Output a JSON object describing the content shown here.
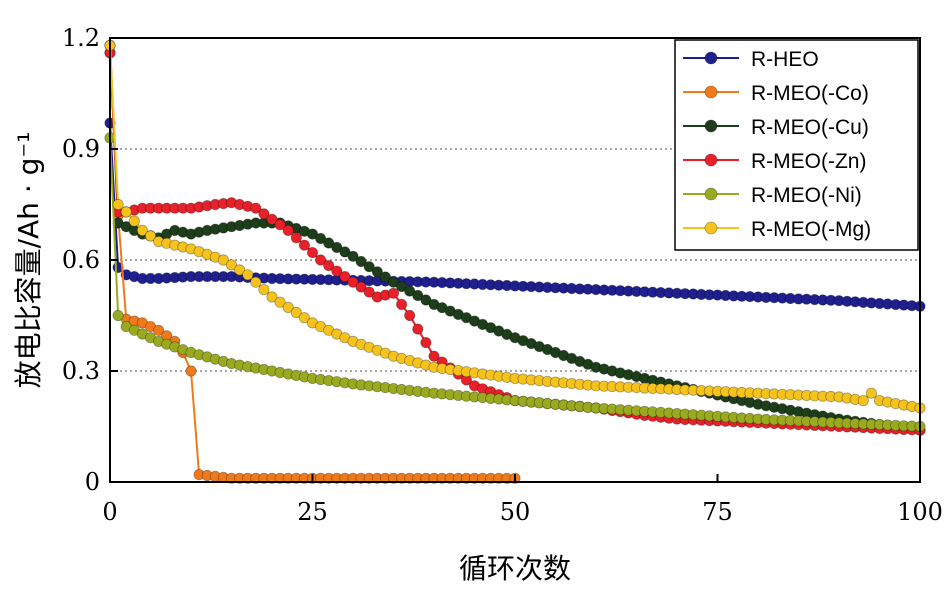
{
  "chart_data": {
    "type": "line",
    "xlabel": "循环次数",
    "ylabel": "放电比容量/Ah · g⁻¹",
    "xlim": [
      0,
      100
    ],
    "ylim": [
      0,
      1.2
    ],
    "xticks": [
      "0",
      "25",
      "50",
      "75",
      "100"
    ],
    "yticks": [
      "0",
      "0.3",
      "0.6",
      "0.9",
      "1.2"
    ],
    "grid": "horizontal dotted",
    "legend_position": "top-right",
    "series": [
      {
        "name": "R-HEO",
        "color": "#1f1f8f",
        "x": [
          0,
          1,
          2,
          4,
          6,
          10,
          15,
          20,
          30,
          40,
          50,
          60,
          70,
          80,
          90,
          100
        ],
        "values": [
          0.97,
          0.58,
          0.56,
          0.55,
          0.55,
          0.555,
          0.555,
          0.55,
          0.545,
          0.54,
          0.53,
          0.52,
          0.51,
          0.5,
          0.49,
          0.475
        ]
      },
      {
        "name": "R-MEO(-Co)",
        "color": "#f07a1a",
        "x": [
          0,
          1,
          2,
          4,
          6,
          8,
          9,
          10,
          11,
          15,
          20,
          30,
          40,
          50
        ],
        "values": [
          1.16,
          0.72,
          0.44,
          0.43,
          0.41,
          0.38,
          0.35,
          0.3,
          0.02,
          0.01,
          0.01,
          0.01,
          0.01,
          0.01
        ]
      },
      {
        "name": "R-MEO(-Cu)",
        "color": "#1e3d1a",
        "x": [
          0,
          1,
          2,
          4,
          6,
          8,
          10,
          12,
          15,
          18,
          21,
          25,
          30,
          35,
          40,
          50,
          60,
          70,
          80,
          90,
          100
        ],
        "values": [
          1.18,
          0.7,
          0.69,
          0.67,
          0.66,
          0.68,
          0.67,
          0.68,
          0.69,
          0.7,
          0.7,
          0.67,
          0.61,
          0.54,
          0.48,
          0.39,
          0.31,
          0.26,
          0.21,
          0.17,
          0.14
        ]
      },
      {
        "name": "R-MEO(-Zn)",
        "color": "#e8202a",
        "x": [
          0,
          1,
          2,
          4,
          6,
          10,
          13,
          15,
          18,
          22,
          26,
          30,
          33,
          35,
          37,
          40,
          45,
          50,
          60,
          66,
          70,
          80,
          90,
          100
        ],
        "values": [
          1.16,
          0.73,
          0.73,
          0.74,
          0.74,
          0.74,
          0.75,
          0.755,
          0.74,
          0.68,
          0.6,
          0.54,
          0.5,
          0.51,
          0.45,
          0.34,
          0.26,
          0.22,
          0.2,
          0.18,
          0.17,
          0.16,
          0.15,
          0.14
        ]
      },
      {
        "name": "R-MEO(-Ni)",
        "color": "#9aaa1e",
        "x": [
          0,
          1,
          2,
          4,
          6,
          10,
          15,
          20,
          25,
          30,
          40,
          50,
          60,
          70,
          80,
          90,
          100
        ],
        "values": [
          0.93,
          0.45,
          0.42,
          0.4,
          0.38,
          0.35,
          0.32,
          0.3,
          0.28,
          0.265,
          0.24,
          0.22,
          0.2,
          0.185,
          0.17,
          0.16,
          0.15
        ]
      },
      {
        "name": "R-MEO(-Mg)",
        "color": "#f6c21c",
        "x": [
          0,
          1,
          2,
          4,
          6,
          10,
          14,
          17,
          20,
          25,
          30,
          35,
          40,
          50,
          60,
          70,
          80,
          90,
          93,
          94,
          95,
          100
        ],
        "values": [
          1.18,
          0.75,
          0.73,
          0.68,
          0.65,
          0.63,
          0.6,
          0.56,
          0.5,
          0.43,
          0.38,
          0.34,
          0.31,
          0.28,
          0.26,
          0.25,
          0.24,
          0.23,
          0.22,
          0.24,
          0.22,
          0.2
        ]
      }
    ]
  }
}
